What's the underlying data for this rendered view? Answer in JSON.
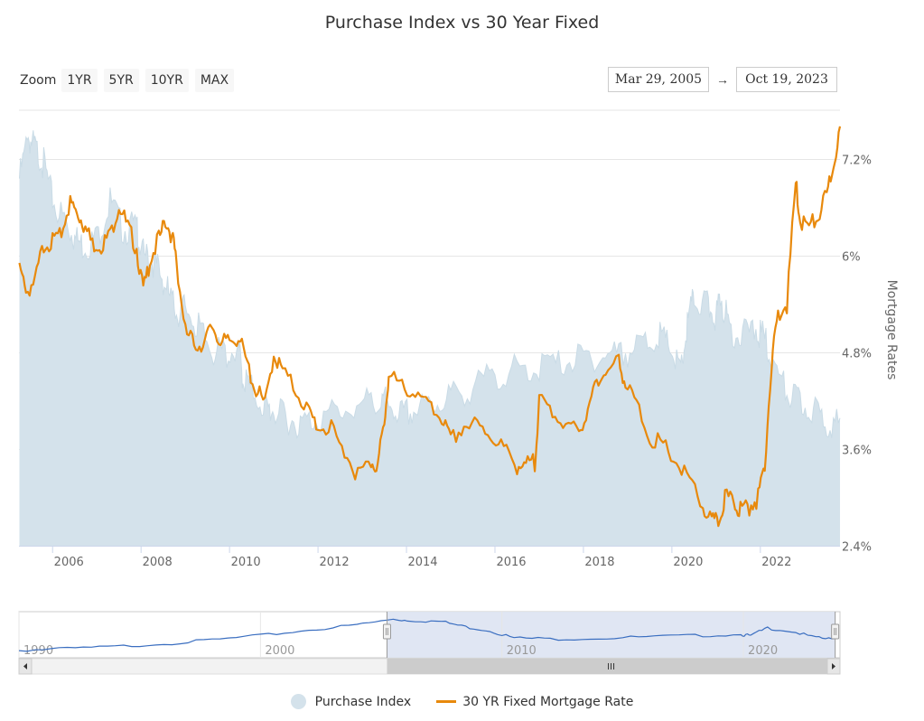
{
  "title": "Purchase Index vs 30 Year Fixed",
  "zoom": {
    "label": "Zoom",
    "buttons": [
      "1YR",
      "5YR",
      "10YR",
      "MAX"
    ]
  },
  "range": {
    "from": "Mar 29, 2005",
    "separator": "→",
    "to": "Oct 19, 2023"
  },
  "legend": {
    "area_label": "Purchase Index",
    "line_label": "30 YR Fixed Mortgage Rate"
  },
  "colors": {
    "area": "#d4e2eb",
    "line": "#e8890c",
    "navigator_line": "#3a6ec0",
    "navigator_mask": "#dde3f2"
  },
  "chart_data": [
    {
      "type": "line",
      "title": "Purchase Index vs 30 Year Fixed",
      "x_axis": {
        "type": "date",
        "range": [
          "2005-03-29",
          "2023-10-19"
        ],
        "tick_labels": [
          "2006",
          "2008",
          "2010",
          "2012",
          "2014",
          "2016",
          "2018",
          "2020",
          "2022"
        ]
      },
      "y_axis_right": {
        "label": "Mortgage Rates",
        "range": [
          2.4,
          7.8
        ],
        "tick_labels": [
          "2.4%",
          "3.6%",
          "4.8%",
          "6%",
          "7.2%"
        ],
        "ticks": [
          2.4,
          3.6,
          4.8,
          6.0,
          7.2
        ]
      },
      "grid": true,
      "legend_position": "bottom-center",
      "series": [
        {
          "name": "Purchase Index",
          "kind": "area",
          "y_range": [
            0,
            580
          ],
          "x": [
            2005.25,
            2005.45,
            2005.6,
            2005.8,
            2006.0,
            2006.3,
            2006.5,
            2006.7,
            2007.0,
            2007.3,
            2007.6,
            2007.9,
            2008.0,
            2008.2,
            2008.4,
            2008.6,
            2008.8,
            2009.0,
            2009.3,
            2009.6,
            2009.9,
            2010.2,
            2010.3,
            2010.5,
            2010.8,
            2011.0,
            2011.3,
            2011.6,
            2012.0,
            2012.5,
            2013.0,
            2013.4,
            2013.6,
            2013.9,
            2014.2,
            2014.6,
            2015.0,
            2015.5,
            2016.0,
            2016.5,
            2017.0,
            2017.5,
            2018.0,
            2018.5,
            2018.9,
            2019.3,
            2019.7,
            2019.95,
            2020.2,
            2020.35,
            2020.5,
            2020.8,
            2021.0,
            2021.1,
            2021.3,
            2021.6,
            2021.9,
            2022.1,
            2022.3,
            2022.6,
            2022.9,
            2023.2,
            2023.5,
            2023.8
          ],
          "y": [
            500,
            555,
            540,
            520,
            470,
            440,
            420,
            410,
            420,
            470,
            430,
            440,
            400,
            395,
            380,
            350,
            320,
            330,
            300,
            270,
            265,
            275,
            235,
            220,
            195,
            190,
            180,
            175,
            180,
            190,
            200,
            205,
            200,
            185,
            190,
            200,
            210,
            220,
            240,
            245,
            250,
            255,
            262,
            265,
            268,
            275,
            290,
            275,
            240,
            305,
            340,
            330,
            315,
            345,
            300,
            290,
            300,
            285,
            250,
            215,
            200,
            190,
            178,
            170
          ]
        },
        {
          "name": "30 YR Fixed Mortgage Rate",
          "kind": "line",
          "x": [
            2005.25,
            2005.4,
            2005.6,
            2005.8,
            2006.0,
            2006.2,
            2006.4,
            2006.55,
            2006.7,
            2006.9,
            2007.1,
            2007.3,
            2007.5,
            2007.7,
            2007.9,
            2008.05,
            2008.2,
            2008.4,
            2008.55,
            2008.7,
            2008.8,
            2009.0,
            2009.2,
            2009.4,
            2009.6,
            2009.8,
            2010.0,
            2010.2,
            2010.4,
            2010.6,
            2010.8,
            2011.0,
            2011.2,
            2011.5,
            2011.8,
            2012.0,
            2012.3,
            2012.6,
            2012.9,
            2013.2,
            2013.35,
            2013.5,
            2013.6,
            2013.9,
            2014.2,
            2014.5,
            2014.8,
            2015.0,
            2015.3,
            2015.6,
            2015.9,
            2016.2,
            2016.5,
            2016.7,
            2016.9,
            2017.0,
            2017.3,
            2017.6,
            2017.9,
            2018.1,
            2018.3,
            2018.5,
            2018.8,
            2018.95,
            2019.2,
            2019.5,
            2019.8,
            2020.1,
            2020.4,
            2020.7,
            2020.9,
            2021.05,
            2021.2,
            2021.4,
            2021.55,
            2021.75,
            2021.95,
            2022.1,
            2022.25,
            2022.4,
            2022.6,
            2022.8,
            2022.9,
            2023.1,
            2023.3,
            2023.5,
            2023.65,
            2023.8
          ],
          "y": [
            5.9,
            5.6,
            5.75,
            6.2,
            6.25,
            6.35,
            6.7,
            6.6,
            6.45,
            6.2,
            6.2,
            6.3,
            6.7,
            6.4,
            6.15,
            5.6,
            6.0,
            6.25,
            6.5,
            6.3,
            6.0,
            5.1,
            5.0,
            4.9,
            5.2,
            4.95,
            5.0,
            5.05,
            4.7,
            4.4,
            4.2,
            4.85,
            4.6,
            4.4,
            4.1,
            3.95,
            3.9,
            3.6,
            3.35,
            3.5,
            3.45,
            4.0,
            4.55,
            4.45,
            4.35,
            4.15,
            4.05,
            3.75,
            3.95,
            3.95,
            3.85,
            3.65,
            3.45,
            3.45,
            3.5,
            4.25,
            4.15,
            3.9,
            3.95,
            4.05,
            4.55,
            4.6,
            4.75,
            4.45,
            4.2,
            3.8,
            3.7,
            3.5,
            3.25,
            2.95,
            2.75,
            2.75,
            3.05,
            3.0,
            2.9,
            2.95,
            3.05,
            3.5,
            4.7,
            5.3,
            5.45,
            6.95,
            6.5,
            6.4,
            6.55,
            6.8,
            7.2,
            7.6
          ]
        }
      ]
    },
    {
      "type": "line",
      "title": "",
      "role": "navigator",
      "x_axis": {
        "range": [
          1990,
          2024
        ],
        "tick_labels": [
          "1990",
          "2000",
          "2010",
          "2020"
        ]
      },
      "series": [
        {
          "name": "Purchase Index",
          "x": [
            1990,
            1992,
            1994,
            1996,
            1998,
            2000,
            2002,
            2004,
            2005.5,
            2006.2,
            2007.5,
            2008.5,
            2009.5,
            2010.5,
            2012,
            2014,
            2016,
            2018,
            2019.9,
            2020.3,
            2021,
            2022,
            2023,
            2023.8
          ],
          "y": [
            25,
            40,
            60,
            85,
            120,
            160,
            210,
            260,
            310,
            300,
            290,
            240,
            205,
            140,
            130,
            135,
            150,
            160,
            170,
            160,
            230,
            200,
            140,
            125
          ]
        }
      ]
    }
  ]
}
